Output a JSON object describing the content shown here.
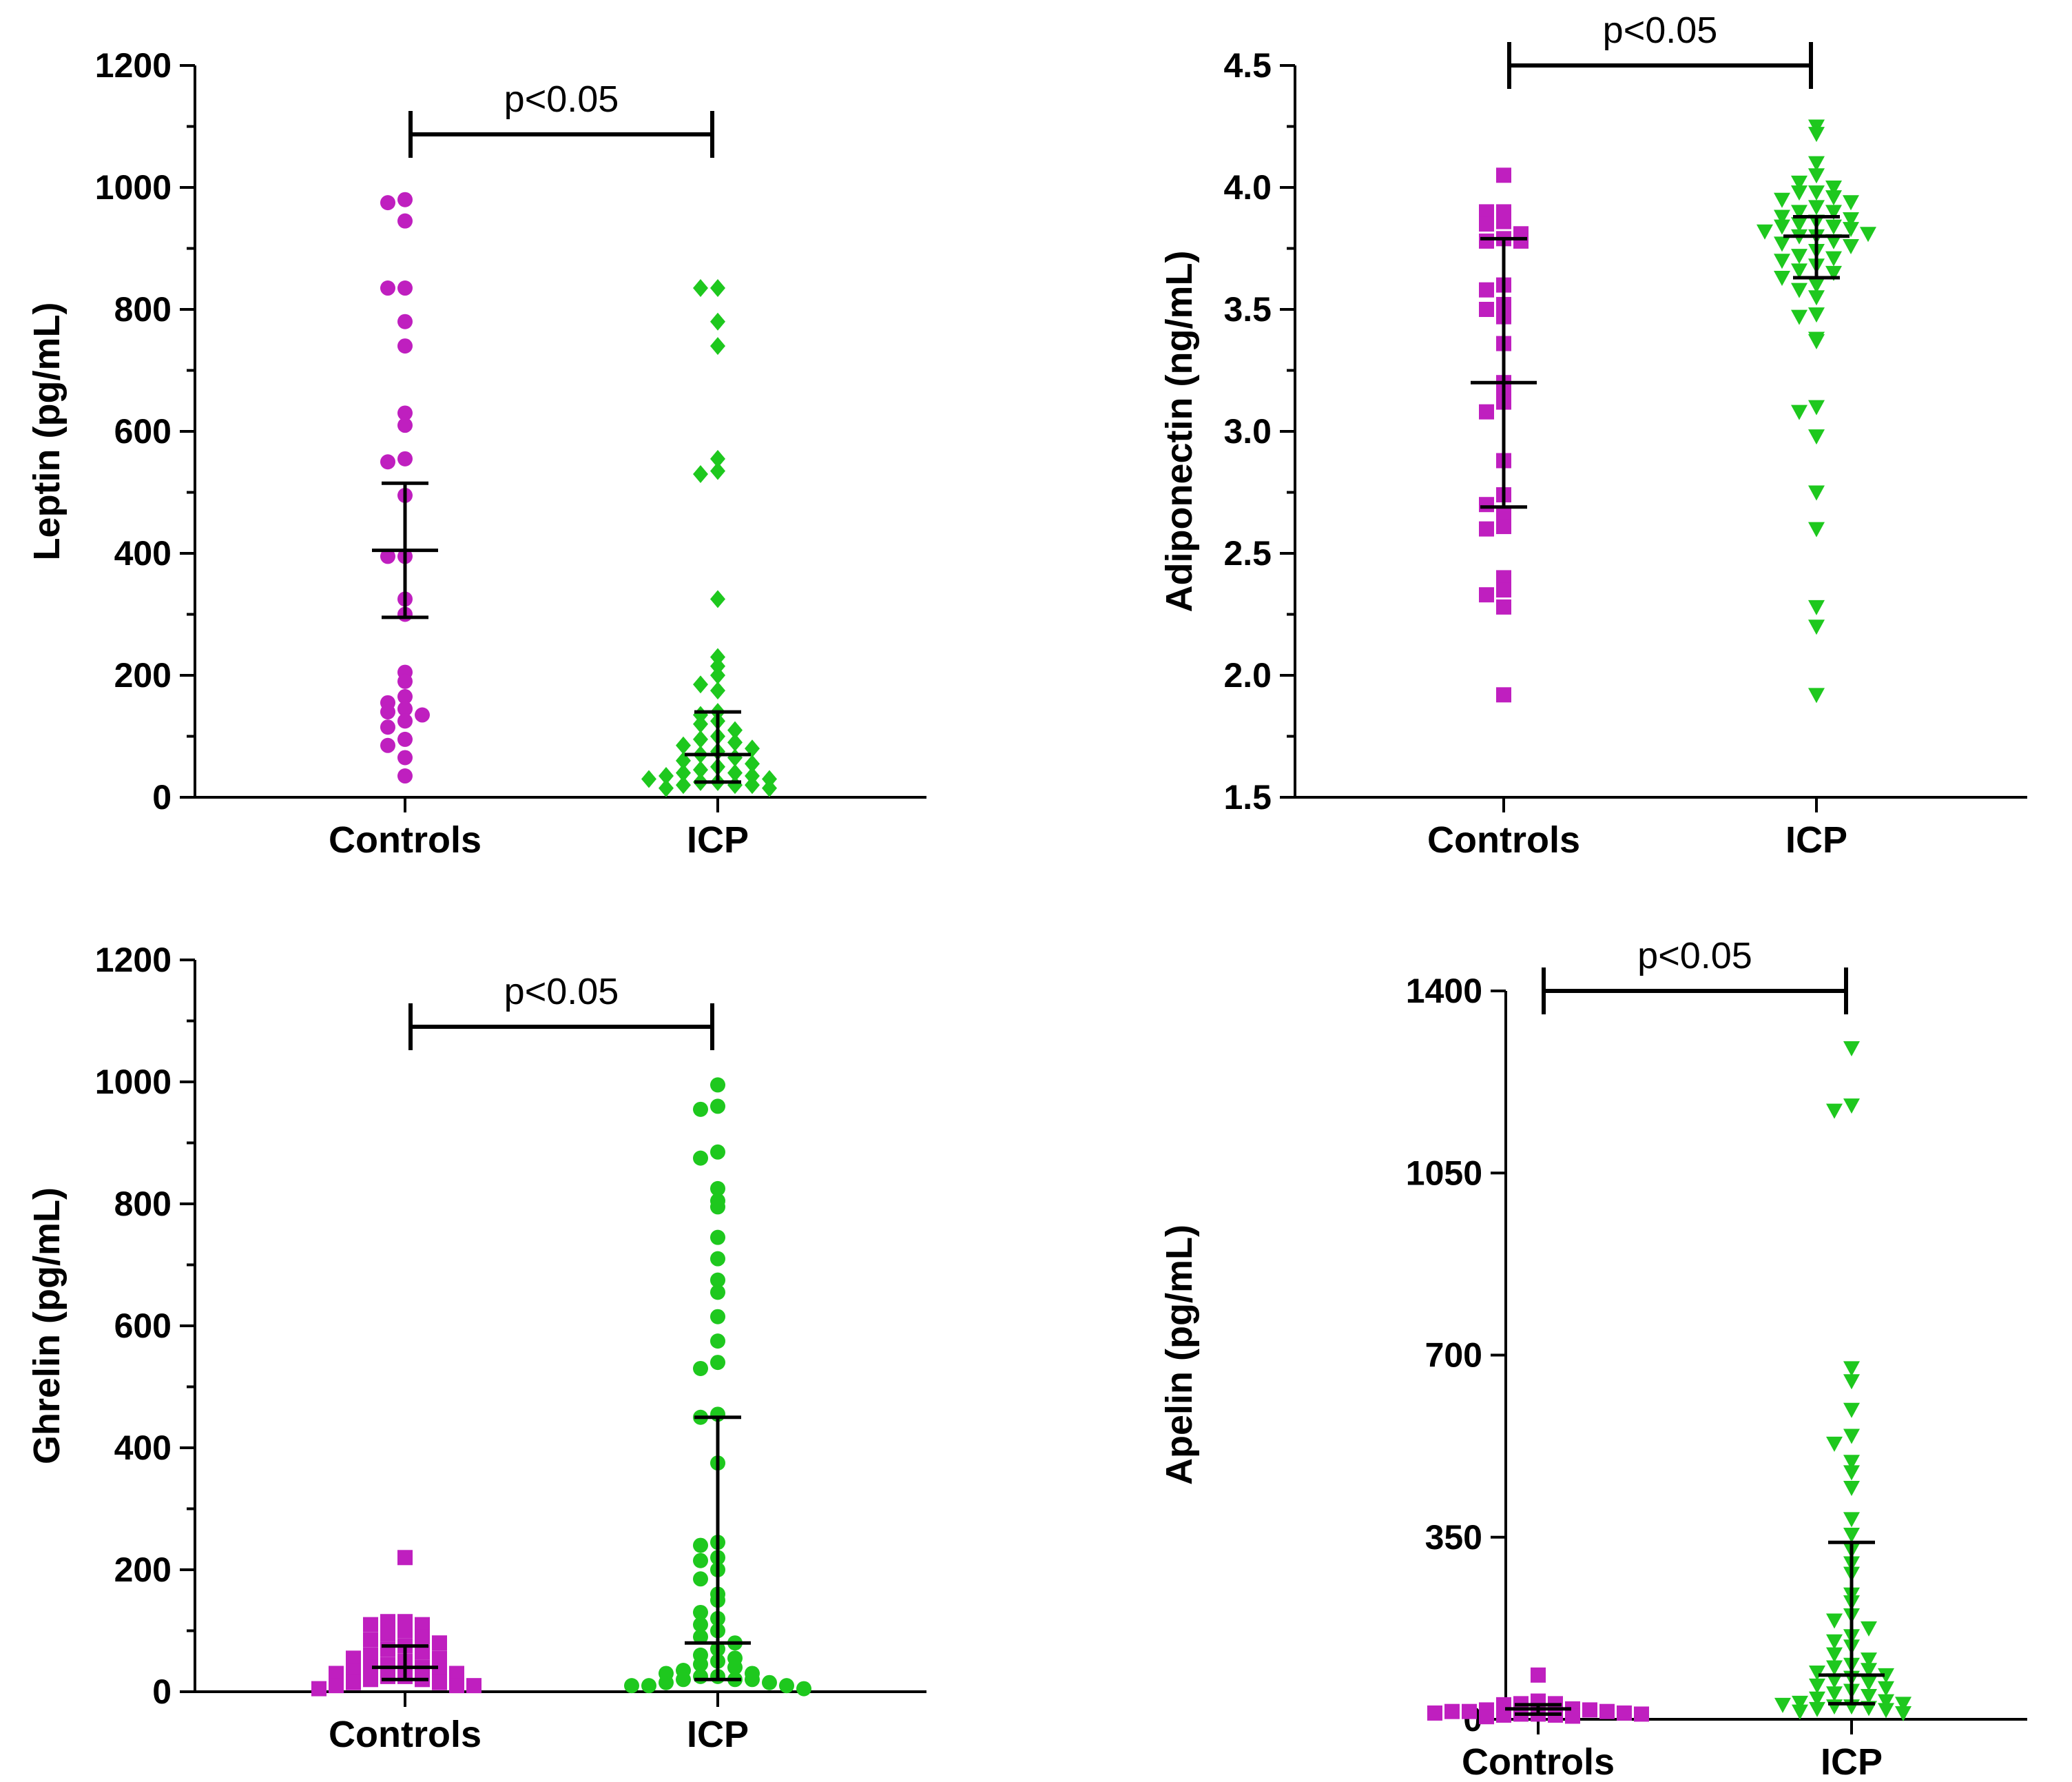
{
  "colors": {
    "controls": "#bf1fbf",
    "icp": "#1ec81e",
    "ink": "#000000"
  },
  "chart_data": [
    {
      "type": "scatter",
      "title": "",
      "ylabel": "Leptin (pg/mL)",
      "categories": [
        "Controls",
        "ICP"
      ],
      "ylim": [
        0,
        1200
      ],
      "yticks": [
        0,
        200,
        400,
        600,
        800,
        1000,
        1200
      ],
      "yticklabels": [
        "0",
        "200",
        "400",
        "600",
        "800",
        "1000",
        "1200"
      ],
      "minor_ticks": true,
      "significance": "p<0.05",
      "markers": [
        "circle",
        "diamond"
      ],
      "series": [
        {
          "name": "Controls",
          "values": [
            980,
            975,
            945,
            835,
            835,
            780,
            740,
            630,
            610,
            555,
            550,
            495,
            395,
            395,
            325,
            300,
            205,
            190,
            165,
            155,
            145,
            140,
            135,
            125,
            115,
            95,
            85,
            65,
            35
          ],
          "summary": {
            "center": 405,
            "low": 295,
            "high": 515
          }
        },
        {
          "name": "ICP",
          "values": [
            835,
            835,
            780,
            740,
            555,
            535,
            530,
            325,
            230,
            215,
            200,
            185,
            175,
            140,
            135,
            125,
            120,
            110,
            100,
            95,
            90,
            85,
            80,
            75,
            70,
            65,
            60,
            55,
            50,
            45,
            40,
            40,
            35,
            35,
            30,
            30,
            25,
            25,
            20,
            20,
            20,
            15,
            15
          ],
          "summary": {
            "center": 70,
            "low": 25,
            "high": 140
          }
        }
      ]
    },
    {
      "type": "scatter",
      "title": "",
      "ylabel": "Adiponectin (ng/mL)",
      "categories": [
        "Controls",
        "ICP"
      ],
      "ylim": [
        1.5,
        4.5
      ],
      "yticks": [
        1.5,
        2.0,
        2.5,
        3.0,
        3.5,
        4.0,
        4.5
      ],
      "yticklabels": [
        "1.5",
        "2.0",
        "2.5",
        "3.0",
        "3.5",
        "4.0",
        "4.5"
      ],
      "minor_ticks": true,
      "significance": "p<0.05",
      "markers": [
        "square",
        "triangle-down"
      ],
      "series": [
        {
          "name": "Controls",
          "values": [
            4.05,
            3.9,
            3.9,
            3.86,
            3.85,
            3.81,
            3.79,
            3.78,
            3.78,
            3.6,
            3.58,
            3.52,
            3.5,
            3.47,
            3.36,
            3.2,
            3.16,
            3.12,
            3.08,
            2.88,
            2.74,
            2.7,
            2.66,
            2.61,
            2.6,
            2.4,
            2.35,
            2.33,
            2.28,
            1.92
          ],
          "summary": {
            "center": 3.2,
            "low": 2.69,
            "high": 3.79
          }
        },
        {
          "name": "ICP",
          "values": [
            4.25,
            4.22,
            4.1,
            4.05,
            4.02,
            4.0,
            3.98,
            3.98,
            3.96,
            3.95,
            3.94,
            3.92,
            3.9,
            3.9,
            3.88,
            3.87,
            3.86,
            3.85,
            3.84,
            3.84,
            3.83,
            3.82,
            3.81,
            3.8,
            3.8,
            3.78,
            3.77,
            3.76,
            3.74,
            3.72,
            3.71,
            3.7,
            3.68,
            3.66,
            3.65,
            3.63,
            3.6,
            3.58,
            3.55,
            3.48,
            3.47,
            3.38,
            3.37,
            3.1,
            3.08,
            2.98,
            2.75,
            2.6,
            2.28,
            2.2,
            1.92
          ],
          "summary": {
            "center": 3.8,
            "low": 3.63,
            "high": 3.88
          }
        }
      ]
    },
    {
      "type": "scatter",
      "title": "",
      "ylabel": "Ghrelin (pg/mL)",
      "categories": [
        "Controls",
        "ICP"
      ],
      "ylim": [
        0,
        1200
      ],
      "yticks": [
        0,
        200,
        400,
        600,
        800,
        1000,
        1200
      ],
      "yticklabels": [
        "0",
        "200",
        "400",
        "600",
        "800",
        "1000",
        "1200"
      ],
      "minor_ticks": true,
      "significance": "p<0.05",
      "markers": [
        "square",
        "circle"
      ],
      "series": [
        {
          "name": "Controls",
          "values": [
            220,
            115,
            115,
            110,
            110,
            100,
            95,
            90,
            85,
            80,
            75,
            70,
            65,
            60,
            55,
            55,
            50,
            45,
            40,
            40,
            35,
            35,
            30,
            30,
            25,
            25,
            20,
            20,
            15,
            15,
            10,
            10,
            10,
            5
          ],
          "summary": {
            "center": 40,
            "low": 20,
            "high": 75
          }
        },
        {
          "name": "ICP",
          "values": [
            995,
            960,
            955,
            885,
            875,
            825,
            805,
            795,
            745,
            710,
            675,
            655,
            615,
            575,
            540,
            530,
            455,
            450,
            375,
            245,
            240,
            220,
            215,
            200,
            185,
            160,
            150,
            130,
            120,
            110,
            100,
            90,
            80,
            70,
            60,
            55,
            50,
            45,
            40,
            35,
            30,
            30,
            25,
            25,
            20,
            20,
            20,
            15,
            15,
            10,
            10,
            10,
            5
          ],
          "summary": {
            "center": 80,
            "low": 20,
            "high": 450
          }
        }
      ]
    },
    {
      "type": "scatter",
      "title": "",
      "ylabel": "Apelin (pg/mL)",
      "categories": [
        "Controls",
        "ICP"
      ],
      "ylim": [
        0,
        1400
      ],
      "yticks": [
        0,
        350,
        700,
        1050,
        1400
      ],
      "yticklabels": [
        "0",
        "350",
        "700",
        "1050",
        "1400"
      ],
      "minor_ticks": false,
      "significance": "p<0.05",
      "markers": [
        "square",
        "triangle-down"
      ],
      "series": [
        {
          "name": "Controls",
          "values": [
            85,
            35,
            30,
            30,
            28,
            25,
            25,
            22,
            20,
            20,
            18,
            18,
            15,
            15,
            15,
            12,
            12,
            10,
            10,
            10,
            8,
            8,
            6,
            5
          ],
          "summary": {
            "center": 20,
            "low": 10,
            "high": 28
          }
        },
        {
          "name": "ICP",
          "values": [
            1290,
            1180,
            1170,
            675,
            650,
            595,
            545,
            530,
            495,
            475,
            445,
            385,
            355,
            325,
            300,
            280,
            240,
            225,
            200,
            190,
            175,
            160,
            150,
            140,
            125,
            115,
            105,
            100,
            95,
            90,
            85,
            80,
            75,
            70,
            65,
            60,
            55,
            50,
            45,
            40,
            35,
            32,
            30,
            28,
            25,
            25,
            22,
            20,
            18,
            15,
            12
          ],
          "summary": {
            "center": 85,
            "low": 30,
            "high": 340
          }
        }
      ]
    }
  ]
}
